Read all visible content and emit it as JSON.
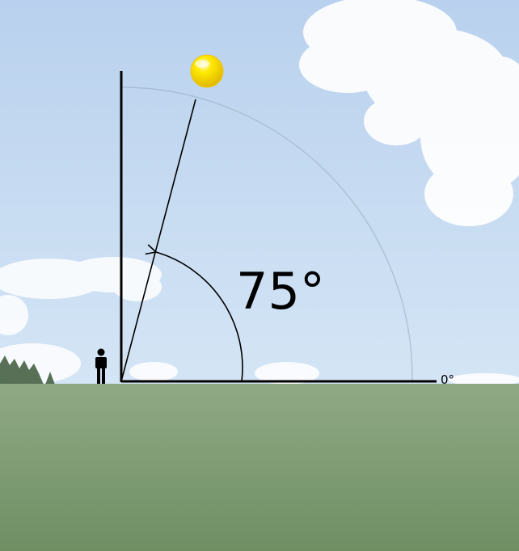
{
  "diagram": {
    "angle_label": "75°",
    "zero_label": "0°",
    "elevation_angle_deg": 75,
    "reference_angle_deg": 0
  },
  "colors": {
    "sky_top": "#bcd3ee",
    "sky_bottom": "#d6e6f4",
    "grass_top": "#8ba67f",
    "grass_bottom": "#6e8f61",
    "sun": "#f2d400",
    "line": "#000000",
    "arc_faint": "#9fb3c8"
  },
  "icons": {
    "sun": "sun-icon",
    "person": "person-icon"
  }
}
